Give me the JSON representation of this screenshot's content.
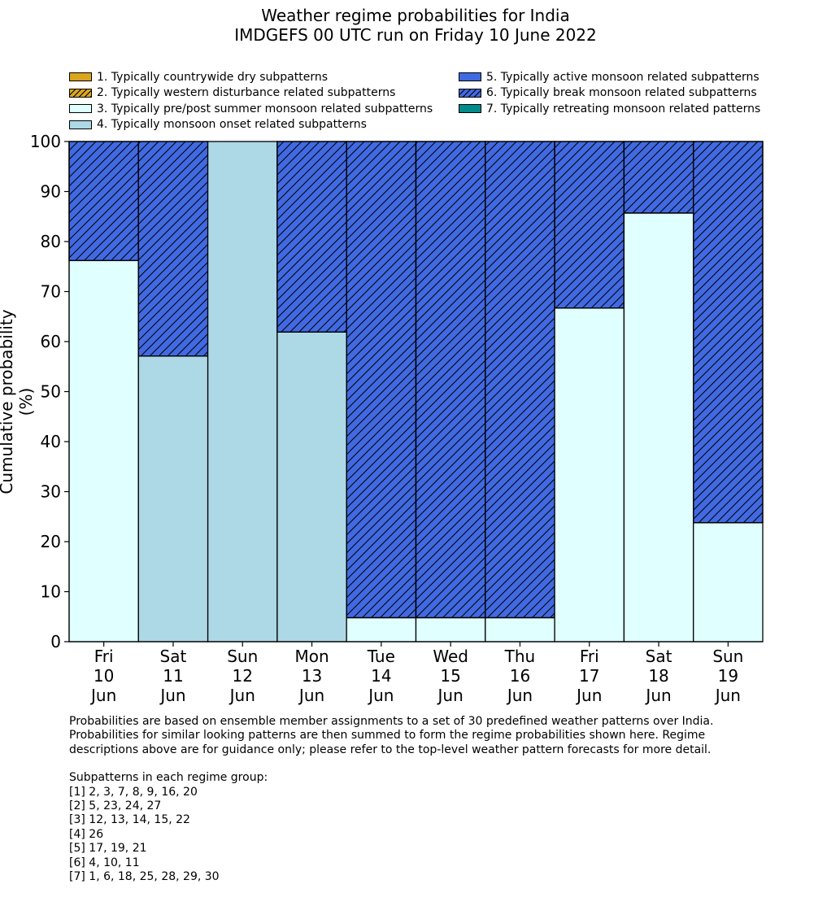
{
  "title_line1": "Weather regime probabilities for India",
  "title_line2": "IMDGEFS 00 UTC run on Friday 10 June 2022",
  "legend": [
    {
      "label": "1. Typically countrywide dry subpatterns",
      "color": "#DAA520",
      "hatch": false
    },
    {
      "label": "2. Typically western disturbance related subpatterns",
      "color": "#DAA520",
      "hatch": true
    },
    {
      "label": "3. Typically pre/post summer monsoon related subpatterns",
      "color": "#E0FFFF",
      "hatch": false
    },
    {
      "label": "4. Typically monsoon onset related subpatterns",
      "color": "#ADD8E6",
      "hatch": false
    },
    {
      "label": "5. Typically active monsoon related subpatterns",
      "color": "#4169E1",
      "hatch": false
    },
    {
      "label": "6. Typically break monsoon related subpatterns",
      "color": "#4169E1",
      "hatch": true
    },
    {
      "label": "7. Typically retreating monsoon related patterns",
      "color": "#008B8B",
      "hatch": false
    }
  ],
  "notes": {
    "para": [
      "Probabilities are based on ensemble member assignments to a set of 30 predefined weather patterns over India.",
      "Probabilities for similar looking patterns are then summed to form the regime probabilities shown here. Regime",
      "descriptions above are for guidance only; please refer to the top-level weather pattern forecasts for more detail."
    ],
    "groups_header": "Subpatterns in each regime group:",
    "groups": [
      "[1] 2, 3, 7, 8, 9, 16, 20",
      "[2] 5, 23, 24, 27",
      "[3] 12, 13, 14, 15, 22",
      "[4] 26",
      "[5] 17, 19, 21",
      "[6] 4, 10, 11",
      "[7] 1, 6, 18, 25, 28, 29, 30"
    ]
  },
  "chart_data": {
    "type": "bar",
    "stacked": true,
    "ylabel": "Cumulative probability (%)",
    "ylim": [
      0,
      100
    ],
    "yticks": [
      0,
      10,
      20,
      30,
      40,
      50,
      60,
      70,
      80,
      90,
      100
    ],
    "categories": [
      [
        "Fri",
        "10",
        "Jun"
      ],
      [
        "Sat",
        "11",
        "Jun"
      ],
      [
        "Sun",
        "12",
        "Jun"
      ],
      [
        "Mon",
        "13",
        "Jun"
      ],
      [
        "Tue",
        "14",
        "Jun"
      ],
      [
        "Wed",
        "15",
        "Jun"
      ],
      [
        "Thu",
        "16",
        "Jun"
      ],
      [
        "Fri",
        "17",
        "Jun"
      ],
      [
        "Sat",
        "18",
        "Jun"
      ],
      [
        "Sun",
        "19",
        "Jun"
      ]
    ],
    "series": [
      {
        "name": "1. Typically countrywide dry subpatterns",
        "color": "#DAA520",
        "hatch": false,
        "values": [
          0,
          0,
          0,
          0,
          0,
          0,
          0,
          0,
          0,
          0
        ]
      },
      {
        "name": "2. Typically western disturbance related subpatterns",
        "color": "#DAA520",
        "hatch": true,
        "values": [
          0,
          0,
          0,
          0,
          0,
          0,
          0,
          0,
          0,
          0
        ]
      },
      {
        "name": "3. Typically pre/post summer monsoon related subpatterns",
        "color": "#E0FFFF",
        "hatch": false,
        "values": [
          76.2,
          0,
          0,
          0,
          4.8,
          4.8,
          4.8,
          66.7,
          85.7,
          23.8
        ]
      },
      {
        "name": "4. Typically monsoon onset related subpatterns",
        "color": "#ADD8E6",
        "hatch": false,
        "values": [
          0,
          57.1,
          100,
          61.9,
          0,
          0,
          0,
          0,
          0,
          0
        ]
      },
      {
        "name": "5. Typically active monsoon related subpatterns",
        "color": "#4169E1",
        "hatch": false,
        "values": [
          0,
          0,
          0,
          0,
          0,
          0,
          0,
          0,
          0,
          0
        ]
      },
      {
        "name": "6. Typically break monsoon related subpatterns",
        "color": "#4169E1",
        "hatch": true,
        "values": [
          23.8,
          42.9,
          0,
          38.1,
          95.2,
          95.2,
          95.2,
          33.3,
          14.3,
          76.2
        ]
      },
      {
        "name": "7. Typically retreating monsoon related patterns",
        "color": "#008B8B",
        "hatch": false,
        "values": [
          0,
          0,
          0,
          0,
          0,
          0,
          0,
          0,
          0,
          0
        ]
      }
    ]
  }
}
